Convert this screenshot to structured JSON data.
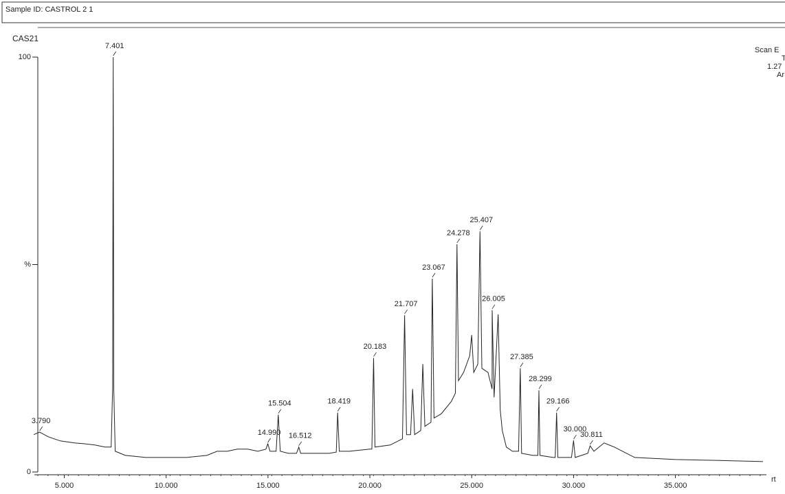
{
  "chart_data": {
    "type": "line",
    "header": "Sample ID: CASTROL 2 1",
    "title": "CAS21",
    "side_text": [
      "Scan E",
      "T",
      "1.27",
      "Ar"
    ],
    "x_label": "rt",
    "xlim": [
      3.7,
      39.3
    ],
    "xticks": [
      {
        "value": 5,
        "label": "5.000"
      },
      {
        "value": 10,
        "label": "10.000"
      },
      {
        "value": 15,
        "label": "15.000"
      },
      {
        "value": 20,
        "label": "20.000"
      },
      {
        "value": 25,
        "label": "25.000"
      },
      {
        "value": 30,
        "label": "30.000"
      },
      {
        "value": 35,
        "label": "35.000"
      }
    ],
    "ylim": [
      0,
      100
    ],
    "yticks": [
      0,
      {
        "value": 50,
        "label": "%"
      },
      100
    ],
    "x": [
      3.5,
      3.79,
      4.2,
      4.8,
      5.5,
      6,
      6.5,
      7,
      7.3,
      7.37,
      7.401,
      7.43,
      7.5,
      8,
      9,
      10,
      11,
      12,
      12.5,
      13,
      13.5,
      14,
      14.5,
      14.9,
      14.99,
      15.1,
      15.4,
      15.504,
      15.6,
      16,
      16.4,
      16.512,
      16.6,
      17,
      18,
      18.35,
      18.419,
      18.5,
      19,
      20,
      20.1,
      20.183,
      20.25,
      21,
      21.6,
      21.707,
      21.8,
      22,
      22.1,
      22.2,
      22.5,
      22.6,
      22.7,
      23,
      23.067,
      23.15,
      23.5,
      24,
      24.2,
      24.278,
      24.35,
      24.6,
      24.9,
      25,
      25.1,
      25.3,
      25.407,
      25.5,
      25.8,
      26,
      26.005,
      26.1,
      26.3,
      26.4,
      26.5,
      26.7,
      27,
      27.3,
      27.385,
      27.45,
      28,
      28.25,
      28.299,
      28.35,
      29,
      29.1,
      29.166,
      29.23,
      29.9,
      30,
      30.08,
      30.7,
      30.811,
      31,
      31.5,
      32,
      33,
      35,
      37,
      39.3
    ],
    "series": [
      {
        "color": "#222222",
        "values": [
          9,
          9.6,
          8.5,
          7.5,
          7,
          6.8,
          6.5,
          6,
          6,
          20,
          100,
          20,
          5,
          4,
          3.5,
          3.5,
          3.5,
          4,
          5,
          5,
          5.5,
          5.5,
          5,
          5.5,
          6.8,
          5,
          5,
          13.8,
          5,
          4.5,
          4.5,
          6,
          4.5,
          4.5,
          4.5,
          4.8,
          14.3,
          5,
          5,
          5.5,
          5.5,
          27.5,
          6,
          6.5,
          8,
          37.8,
          9,
          9,
          20,
          9,
          10,
          26,
          11,
          12,
          46.6,
          13,
          14,
          17,
          19,
          54.9,
          22,
          24,
          28,
          33,
          24,
          26,
          58,
          25,
          24,
          20,
          39,
          18,
          38,
          15,
          10,
          6,
          5,
          5,
          25,
          4.5,
          4,
          4,
          19.7,
          4,
          3.5,
          3.5,
          14.3,
          3.5,
          3.5,
          7.6,
          3.5,
          4.5,
          6.3,
          5,
          7,
          6,
          3.5,
          3,
          2.8,
          2.5
        ]
      }
    ],
    "peaks": {
      "x": [
        3.79,
        7.401,
        14.99,
        15.504,
        16.512,
        18.419,
        20.183,
        21.707,
        23.067,
        24.278,
        25.407,
        26.005,
        27.385,
        28.299,
        29.166,
        30,
        30.811
      ],
      "x_labels": [
        "3.790",
        "7.401",
        "14.990",
        "15.504",
        "16.512",
        "18.419",
        "20.183",
        "21.707",
        "23.067",
        "24.278",
        "25.407",
        "26.005",
        "27.385",
        "28.299",
        "29.166",
        "30.000",
        "30.811"
      ],
      "values": [
        9.6,
        100,
        6.8,
        13.8,
        6,
        14.3,
        27.5,
        37.8,
        46.6,
        54.9,
        58,
        39,
        25,
        19.7,
        14.3,
        7.6,
        6.3
      ]
    }
  }
}
